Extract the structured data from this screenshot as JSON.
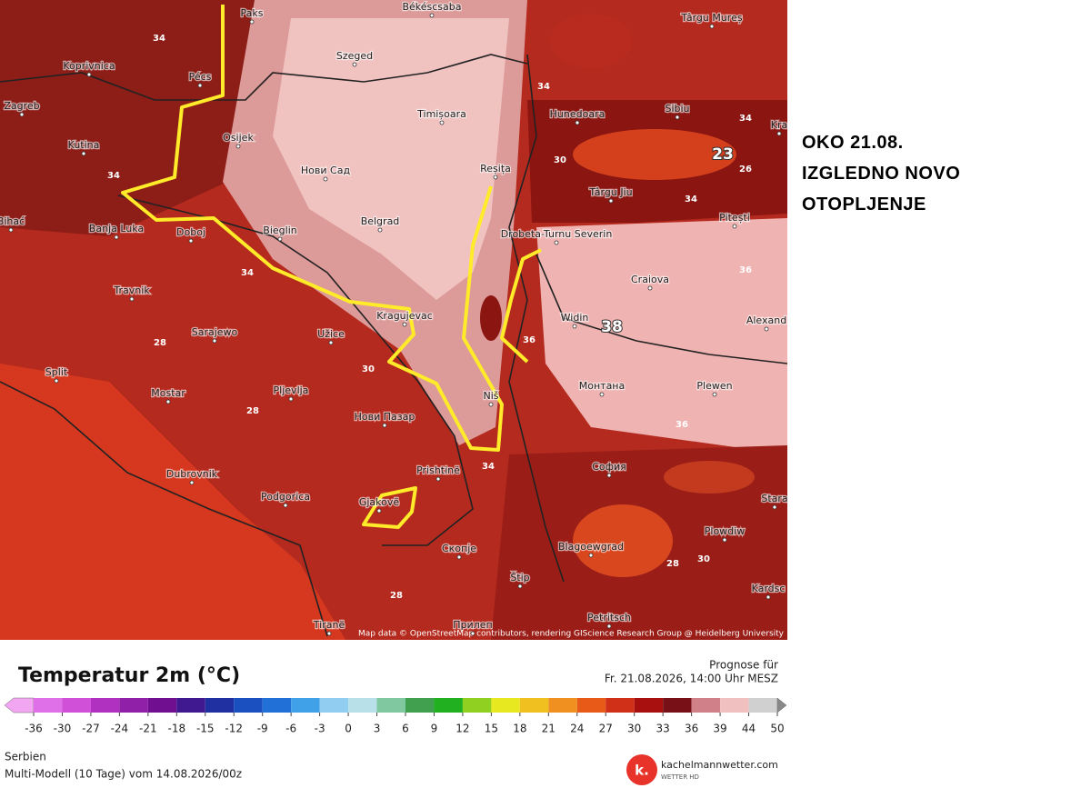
{
  "annotation": {
    "lines": [
      "OKO 21.08.",
      "IZGLEDNO NOVO",
      "OTOPLJENJE"
    ]
  },
  "map": {
    "cities": [
      "Paks",
      "Békéscsaba",
      "Târgu Mureș",
      "Koprivnica",
      "Szeged",
      "Pécs",
      "Zagreb",
      "Timișoara",
      "Hunedoara",
      "Sibiu",
      "Kra",
      "Osijek",
      "Kutina",
      "Нови Сад",
      "Reșița",
      "Târgu Jiu",
      "Pitești",
      "Bihać",
      "Banja Luka",
      "Doboj",
      "Bieglin",
      "Belgrad",
      "Drobeta-Turnu Severin",
      "Craiova",
      "Travnik",
      "Kragujevac",
      "Widin",
      "Alexand",
      "Sarajewo",
      "Užice",
      "Split",
      "Mostar",
      "Pljevlja",
      "Niš",
      "Монтана",
      "Plewen",
      "Нови Пазар",
      "Dubrovnik",
      "Prishtinë",
      "София",
      "Podgorica",
      "Gjakovë",
      "Stara",
      "Plowdiw",
      "Скопје",
      "Blagoewgrad",
      "Štip",
      "Kardsc",
      "Tiranë",
      "Прилеп",
      "Petritsch"
    ],
    "contour_labels": [
      34,
      34,
      34,
      30,
      23,
      26,
      34,
      34,
      34,
      36,
      38,
      36,
      28,
      30,
      36,
      28,
      34,
      28,
      28,
      30
    ],
    "attribution": "Map data © OpenStreetMap contributors, rendering GIScience Research Group @ Heidelberg University"
  },
  "legend": {
    "title": "Temperatur 2m (°C)",
    "forecast_label": "Prognose für",
    "forecast_time": "Fr. 21.08.2026, 14:00 Uhr MESZ",
    "colorbar": {
      "ticks": [
        -36,
        -30,
        -27,
        -24,
        -21,
        -18,
        -15,
        -12,
        -9,
        -6,
        -3,
        0,
        3,
        6,
        9,
        12,
        15,
        18,
        21,
        24,
        27,
        30,
        33,
        36,
        39,
        44,
        50
      ],
      "colors": [
        "#f2a6f2",
        "#e070e8",
        "#d050d8",
        "#b030c0",
        "#9020a8",
        "#701090",
        "#401890",
        "#2030a0",
        "#1a50c0",
        "#2070d8",
        "#40a0e8",
        "#90cdf0",
        "#b8e0e8",
        "#80c8a0",
        "#40a050",
        "#20b020",
        "#90d020",
        "#e8e820",
        "#f0c020",
        "#f09020",
        "#e85a18",
        "#d03018",
        "#a81010",
        "#781018",
        "#d08088",
        "#f0c0c0",
        "#d0d0d0",
        "#888888"
      ]
    },
    "region": "Serbien",
    "model": "Multi-Modell (10 Tage) vom 14.08.2026/00z"
  },
  "brand": {
    "logo": "k.",
    "name": "kachelmannwetter.com",
    "tagline": "WETTER HD"
  }
}
